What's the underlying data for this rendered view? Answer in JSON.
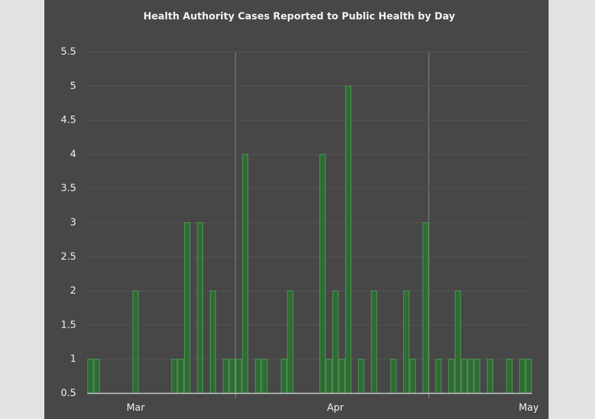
{
  "chart_data": {
    "type": "bar",
    "title": "Health Authority Cases Reported to Public Health by Day",
    "categories": [
      null,
      null,
      null,
      null,
      null,
      null,
      null,
      "Mar",
      null,
      null,
      null,
      null,
      null,
      null,
      null,
      null,
      null,
      null,
      null,
      null,
      null,
      null,
      null,
      null,
      null,
      null,
      null,
      null,
      null,
      null,
      null,
      null,
      null,
      null,
      null,
      null,
      null,
      null,
      "Apr",
      null,
      null,
      null,
      null,
      null,
      null,
      null,
      null,
      null,
      null,
      null,
      null,
      null,
      null,
      null,
      null,
      null,
      null,
      null,
      null,
      null,
      null,
      null,
      null,
      null,
      null,
      null,
      null,
      null,
      "May"
    ],
    "values": [
      1,
      1,
      null,
      null,
      null,
      null,
      null,
      2,
      null,
      null,
      null,
      null,
      null,
      1,
      1,
      3,
      null,
      3,
      null,
      2,
      null,
      1,
      1,
      1,
      4,
      null,
      1,
      1,
      null,
      null,
      1,
      2,
      null,
      null,
      null,
      null,
      4,
      1,
      2,
      1,
      5,
      null,
      1,
      null,
      2,
      null,
      null,
      1,
      null,
      2,
      1,
      null,
      3,
      null,
      1,
      null,
      1,
      2,
      1,
      1,
      1,
      null,
      1,
      null,
      null,
      1,
      null,
      1,
      1
    ],
    "color": "#2f6b35",
    "ylim": [
      0.5,
      5.5
    ],
    "yticks": [
      0.5,
      1,
      1.5,
      2,
      2.5,
      3,
      3.5,
      4,
      4.5,
      5,
      5.5
    ],
    "grid": true
  }
}
